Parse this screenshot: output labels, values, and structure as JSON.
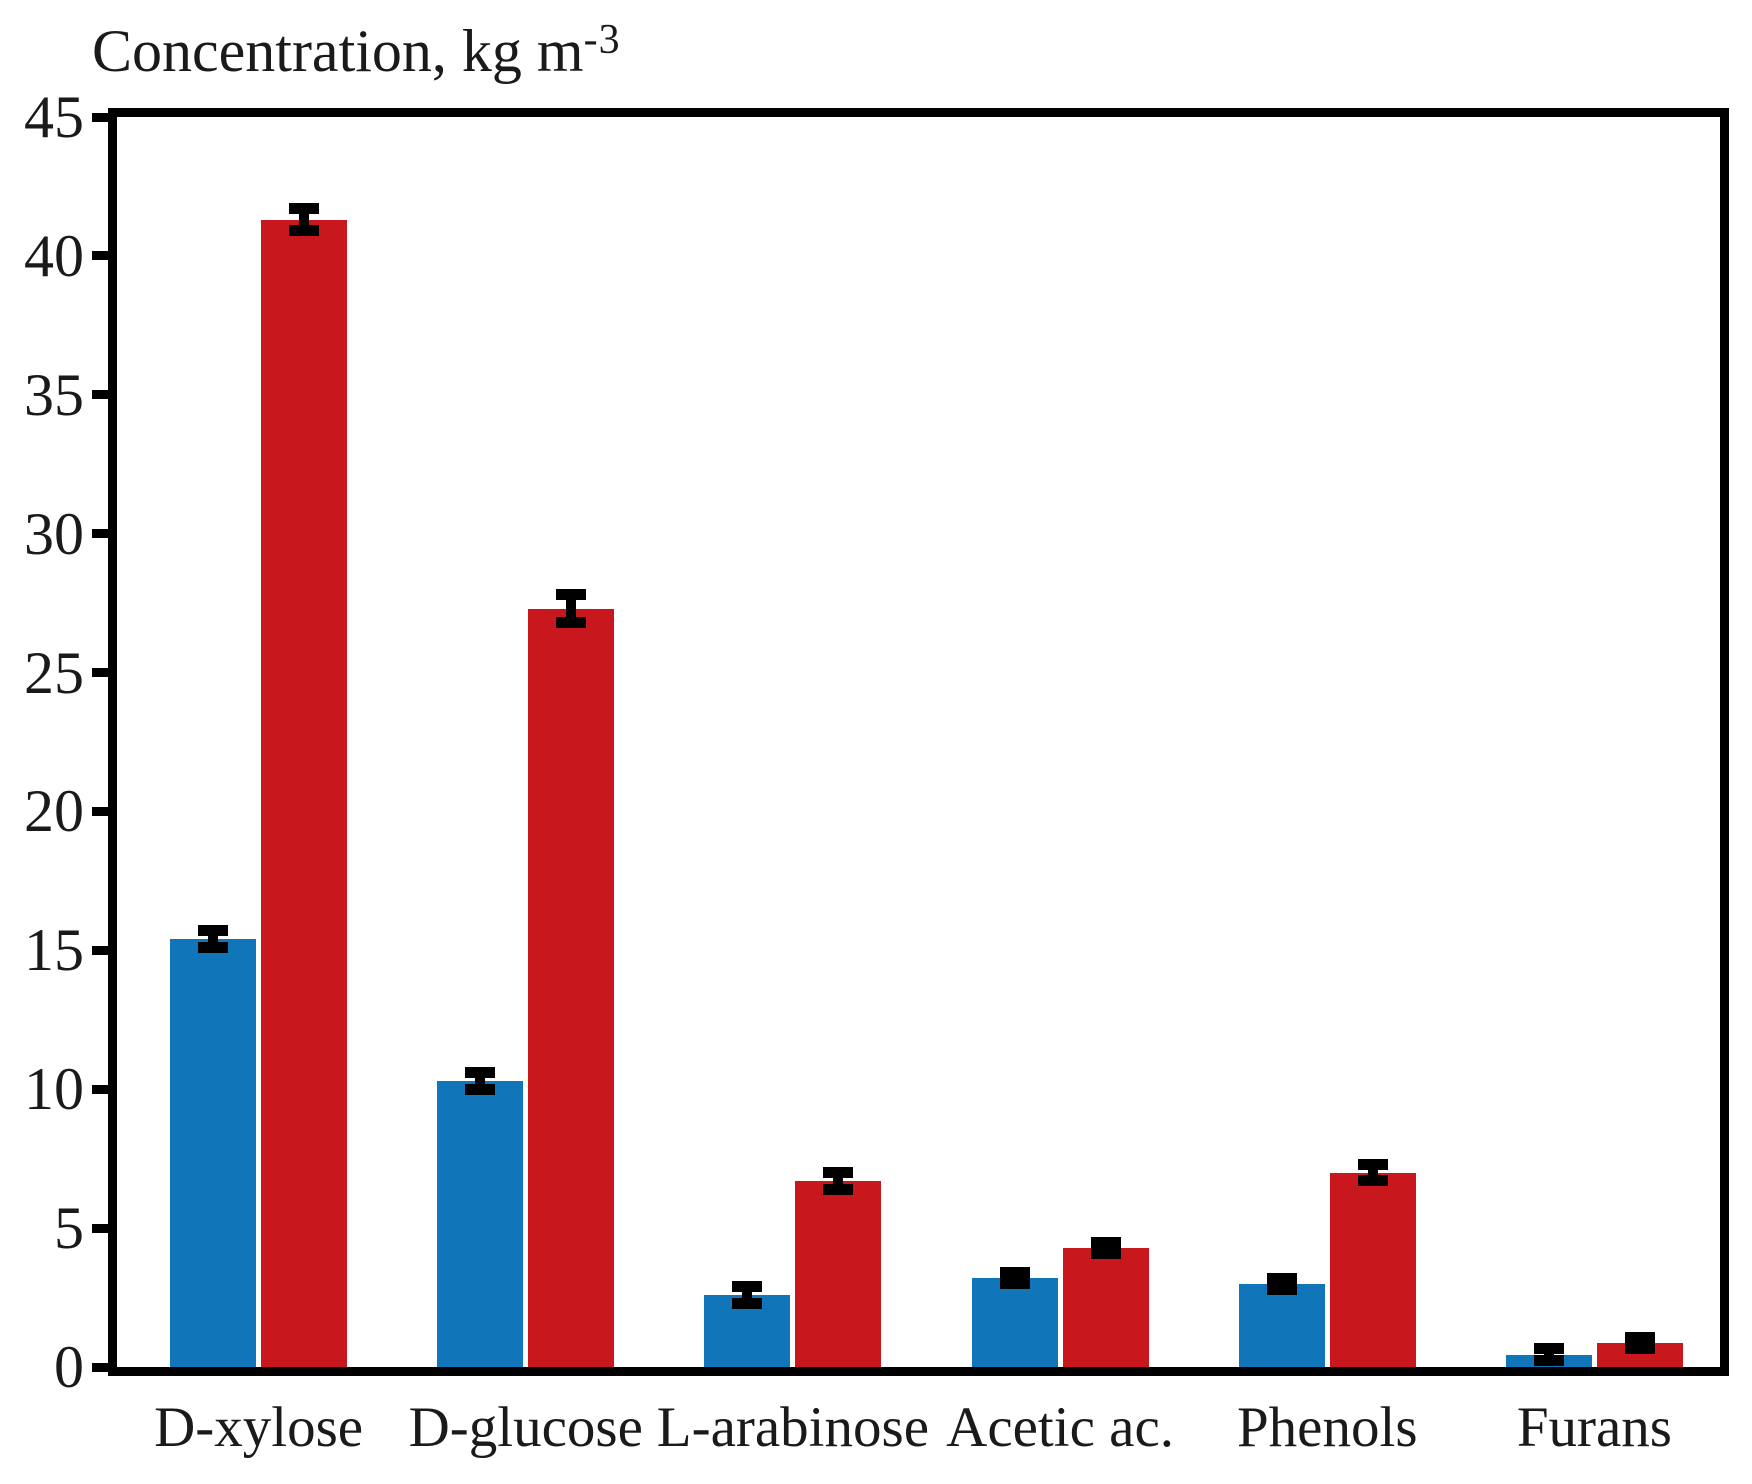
{
  "title": {
    "text": "Concentration, kg m",
    "superscript": "-3"
  },
  "chart_data": {
    "type": "bar",
    "title": "",
    "ylabel": "Concentration, kg m⁻³",
    "xlabel": "",
    "ylim": [
      0,
      45
    ],
    "yticks": [
      0,
      5,
      10,
      15,
      20,
      25,
      30,
      35,
      40,
      45
    ],
    "grid": false,
    "legend": "none",
    "error_bars": true,
    "categories": [
      "D-xylose",
      "D-glucose",
      "L-arabinose",
      "Acetic ac.",
      "Phenols",
      "Furans"
    ],
    "series": [
      {
        "name": "blue",
        "color": "#1176b9",
        "values": [
          15.4,
          10.3,
          2.6,
          3.2,
          3.0,
          0.45
        ],
        "errors": [
          0.3,
          0.3,
          0.3,
          0.2,
          0.2,
          0.2
        ]
      },
      {
        "name": "red",
        "color": "#c8171d",
        "values": [
          41.3,
          27.3,
          6.7,
          4.3,
          7.0,
          0.85
        ],
        "errors": [
          0.4,
          0.5,
          0.3,
          0.2,
          0.3,
          0.2
        ]
      }
    ]
  }
}
